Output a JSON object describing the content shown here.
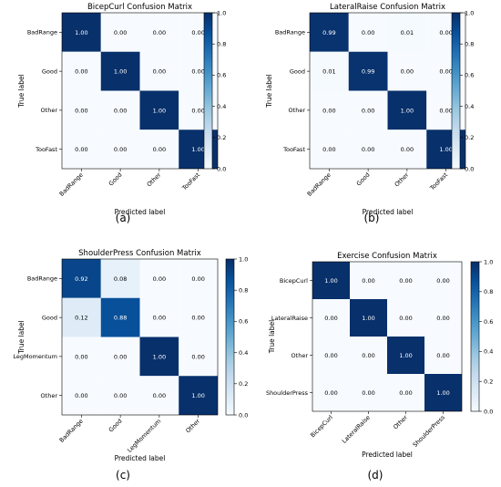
{
  "chart_data": [
    {
      "type": "heatmap",
      "title": "BicepCurl Confusion Matrix",
      "xlabel": "Predicted label",
      "ylabel": "True label",
      "x_categories": [
        "BadRange",
        "Good",
        "Other",
        "TooFast"
      ],
      "y_categories": [
        "BadRange",
        "Good",
        "Other",
        "TooFast"
      ],
      "values": [
        [
          1.0,
          0.0,
          0.0,
          0.0
        ],
        [
          0.0,
          1.0,
          0.0,
          0.0
        ],
        [
          0.0,
          0.0,
          1.0,
          0.0
        ],
        [
          0.0,
          0.0,
          0.0,
          1.0
        ]
      ],
      "colorbar": {
        "range": [
          0.0,
          1.0
        ],
        "ticks": [
          "0.0",
          "0.2",
          "0.4",
          "0.6",
          "0.8",
          "1.0"
        ],
        "cmap": "Blues"
      },
      "caption": "(a)"
    },
    {
      "type": "heatmap",
      "title": "LateralRaise Confusion Matrix",
      "xlabel": "Predicted label",
      "ylabel": "True label",
      "x_categories": [
        "BadRange",
        "Good",
        "Other",
        "TooFast"
      ],
      "y_categories": [
        "BadRange",
        "Good",
        "Other",
        "TooFast"
      ],
      "values": [
        [
          0.99,
          0.0,
          0.01,
          0.0
        ],
        [
          0.01,
          0.99,
          0.0,
          0.0
        ],
        [
          0.0,
          0.0,
          1.0,
          0.0
        ],
        [
          0.0,
          0.0,
          0.0,
          1.0
        ]
      ],
      "colorbar": {
        "range": [
          0.0,
          1.0
        ],
        "ticks": [
          "0.0",
          "0.2",
          "0.4",
          "0.6",
          "0.8",
          "1.0"
        ],
        "cmap": "Blues"
      },
      "caption": "(b)"
    },
    {
      "type": "heatmap",
      "title": "ShoulderPress Confusion Matrix",
      "xlabel": "Predicted label",
      "ylabel": "True label",
      "x_categories": [
        "BadRange",
        "Good",
        "LegMomentum",
        "Other"
      ],
      "y_categories": [
        "BadRange",
        "Good",
        "LegMomentum",
        "Other"
      ],
      "values": [
        [
          0.92,
          0.08,
          0.0,
          0.0
        ],
        [
          0.12,
          0.88,
          0.0,
          0.0
        ],
        [
          0.0,
          0.0,
          1.0,
          0.0
        ],
        [
          0.0,
          0.0,
          0.0,
          1.0
        ]
      ],
      "colorbar": {
        "range": [
          0.0,
          1.0
        ],
        "ticks": [
          "0.0",
          "0.2",
          "0.4",
          "0.6",
          "0.8",
          "1.0"
        ],
        "cmap": "Blues"
      },
      "caption": "(c)"
    },
    {
      "type": "heatmap",
      "title": "Exercise Confusion Matrix",
      "xlabel": "Predicted label",
      "ylabel": "True label",
      "x_categories": [
        "BicepCurl",
        "LateralRaise",
        "Other",
        "ShoulderPress"
      ],
      "y_categories": [
        "BicepCurl",
        "LateralRaise",
        "Other",
        "ShoulderPress"
      ],
      "values": [
        [
          1.0,
          0.0,
          0.0,
          0.0
        ],
        [
          0.0,
          1.0,
          0.0,
          0.0
        ],
        [
          0.0,
          0.0,
          1.0,
          0.0
        ],
        [
          0.0,
          0.0,
          0.0,
          1.0
        ]
      ],
      "colorbar": {
        "range": [
          0.0,
          1.0
        ],
        "ticks": [
          "0.0",
          "0.2",
          "0.4",
          "0.6",
          "0.8",
          "1.0"
        ],
        "cmap": "Blues"
      },
      "caption": "(d)"
    }
  ],
  "colors": {
    "cmap_low": "#f7fbff",
    "cmap_high": "#08306b",
    "dark_text": "#000000",
    "light_text": "#ffffff"
  }
}
